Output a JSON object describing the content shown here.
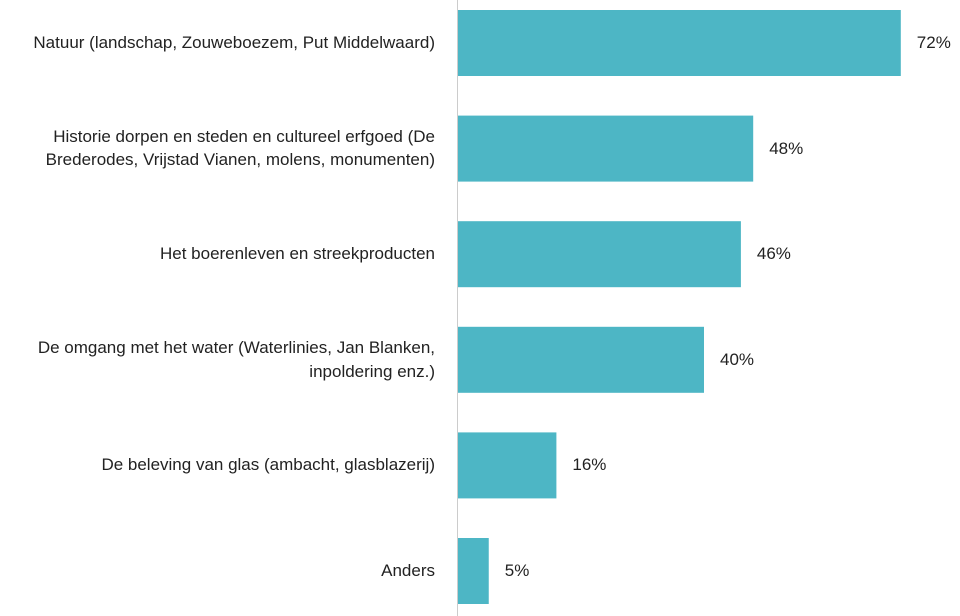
{
  "chart_data": {
    "type": "bar",
    "orientation": "horizontal",
    "categories": [
      "Natuur (landschap, Zouweboezem, Put Middelwaard)",
      "Historie dorpen en steden en cultureel erfgoed (De Brederodes, Vrijstad Vianen, molens, monumenten)",
      "Het boerenleven en streekproducten",
      "De omgang met het water (Waterlinies, Jan Blanken, inpoldering enz.)",
      "De beleving van glas (ambacht, glasblazerij)",
      "Anders"
    ],
    "values": [
      72,
      48,
      46,
      40,
      16,
      5
    ],
    "value_labels": [
      "72%",
      "48%",
      "46%",
      "40%",
      "16%",
      "5%"
    ],
    "color": "#4db6c5"
  }
}
